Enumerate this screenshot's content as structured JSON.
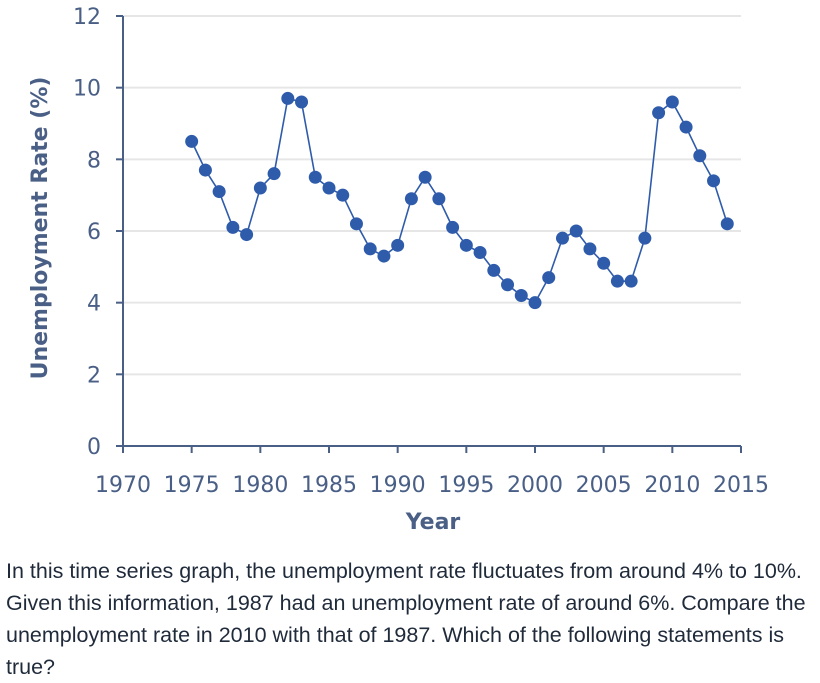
{
  "question_text": "In this time series graph, the unemployment rate fluctuates from around 4% to 10%. Given this information, 1987 had an unemployment rate of around 6%. Compare the unemployment rate in 2010 with that of 1987. Which of the following statements is true?",
  "chart_data": {
    "type": "line",
    "xlabel": "Year",
    "ylabel": "Unemployment Rate (%)",
    "xlim": [
      1970,
      2015
    ],
    "ylim": [
      0,
      12
    ],
    "xticks": [
      1970,
      1975,
      1980,
      1985,
      1990,
      1995,
      2000,
      2005,
      2010,
      2015
    ],
    "yticks": [
      0,
      2,
      4,
      6,
      8,
      10,
      12
    ],
    "grid": "horizontal",
    "colors": {
      "series": "#2f5bab",
      "axis": "#4a5f86",
      "grid": "#e6e6e6"
    },
    "series": [
      {
        "x": [
          1975,
          1976,
          1977,
          1978,
          1979,
          1980,
          1981,
          1982,
          1983,
          1984,
          1985,
          1986,
          1987,
          1988,
          1989,
          1990,
          1991,
          1992,
          1993,
          1994,
          1995,
          1996,
          1997,
          1998,
          1999,
          2000,
          2001,
          2002,
          2003,
          2004,
          2005,
          2006,
          2007,
          2008,
          2009,
          2010,
          2011,
          2012,
          2013,
          2014
        ],
        "values": [
          8.5,
          7.7,
          7.1,
          6.1,
          5.9,
          7.2,
          7.6,
          9.7,
          9.6,
          7.5,
          7.2,
          7.0,
          6.2,
          5.5,
          5.3,
          5.6,
          6.9,
          7.5,
          6.9,
          6.1,
          5.6,
          5.4,
          4.9,
          4.5,
          4.2,
          4.0,
          4.7,
          5.8,
          6.0,
          5.5,
          5.1,
          4.6,
          4.6,
          5.8,
          9.3,
          9.6,
          8.9,
          8.1,
          7.4,
          6.2
        ]
      }
    ]
  }
}
